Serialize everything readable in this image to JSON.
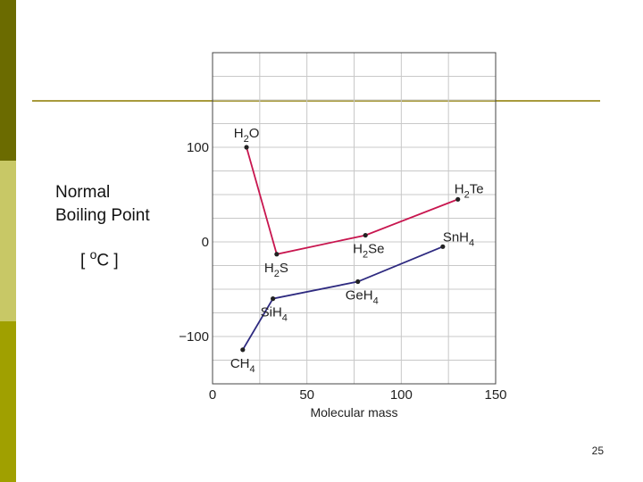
{
  "slide": {
    "page_number": "25",
    "colors": {
      "bar_dark": "#6b6b00",
      "bar_light": "#c8c866",
      "bar_mid": "#a0a000",
      "rule": "#a89a3c"
    }
  },
  "chart_data": {
    "type": "line",
    "title": "",
    "xlabel": "Molecular mass",
    "ylabel_line1": "Normal",
    "ylabel_line2": "Boiling Point",
    "ylabel_unit_open": "[",
    "ylabel_unit_deg": "o",
    "ylabel_unit_c": "C",
    "ylabel_unit_close": "]",
    "xlim": [
      0,
      150
    ],
    "ylim": [
      -150,
      200
    ],
    "x_ticks": [
      0,
      50,
      100,
      150
    ],
    "x_tick_labels": [
      "0",
      "50",
      "100",
      "150"
    ],
    "y_ticks": [
      100,
      0,
      -100
    ],
    "y_tick_labels": [
      "100",
      "0",
      "−100"
    ],
    "grid": true,
    "series": [
      {
        "color": "#c8164f",
        "points": [
          {
            "x": 18,
            "y": 100,
            "label_base": "H",
            "label_sub": "2",
            "label_rest": "O",
            "label_pos": "above"
          },
          {
            "x": 34,
            "y": -13,
            "label_base": "H",
            "label_sub": "2",
            "label_rest": "S",
            "label_pos": "below"
          },
          {
            "x": 81,
            "y": 7,
            "label_base": "H",
            "label_sub": "2",
            "label_rest": "Se",
            "label_pos": "below"
          },
          {
            "x": 130,
            "y": 45,
            "label_base": "H",
            "label_sub": "2",
            "label_rest": "Te",
            "label_pos": "right"
          }
        ]
      },
      {
        "color": "#2e2a80",
        "points": [
          {
            "x": 16,
            "y": -114,
            "label_base": "CH",
            "label_sub": "4",
            "label_rest": "",
            "label_pos": "below"
          },
          {
            "x": 32,
            "y": -60,
            "label_base": "SiH",
            "label_sub": "4",
            "label_rest": "",
            "label_pos": "below"
          },
          {
            "x": 77,
            "y": -42,
            "label_base": "GeH",
            "label_sub": "4",
            "label_rest": "",
            "label_pos": "below"
          },
          {
            "x": 122,
            "y": -5,
            "label_base": "SnH",
            "label_sub": "4",
            "label_rest": "",
            "label_pos": "aboveright"
          }
        ]
      }
    ]
  }
}
